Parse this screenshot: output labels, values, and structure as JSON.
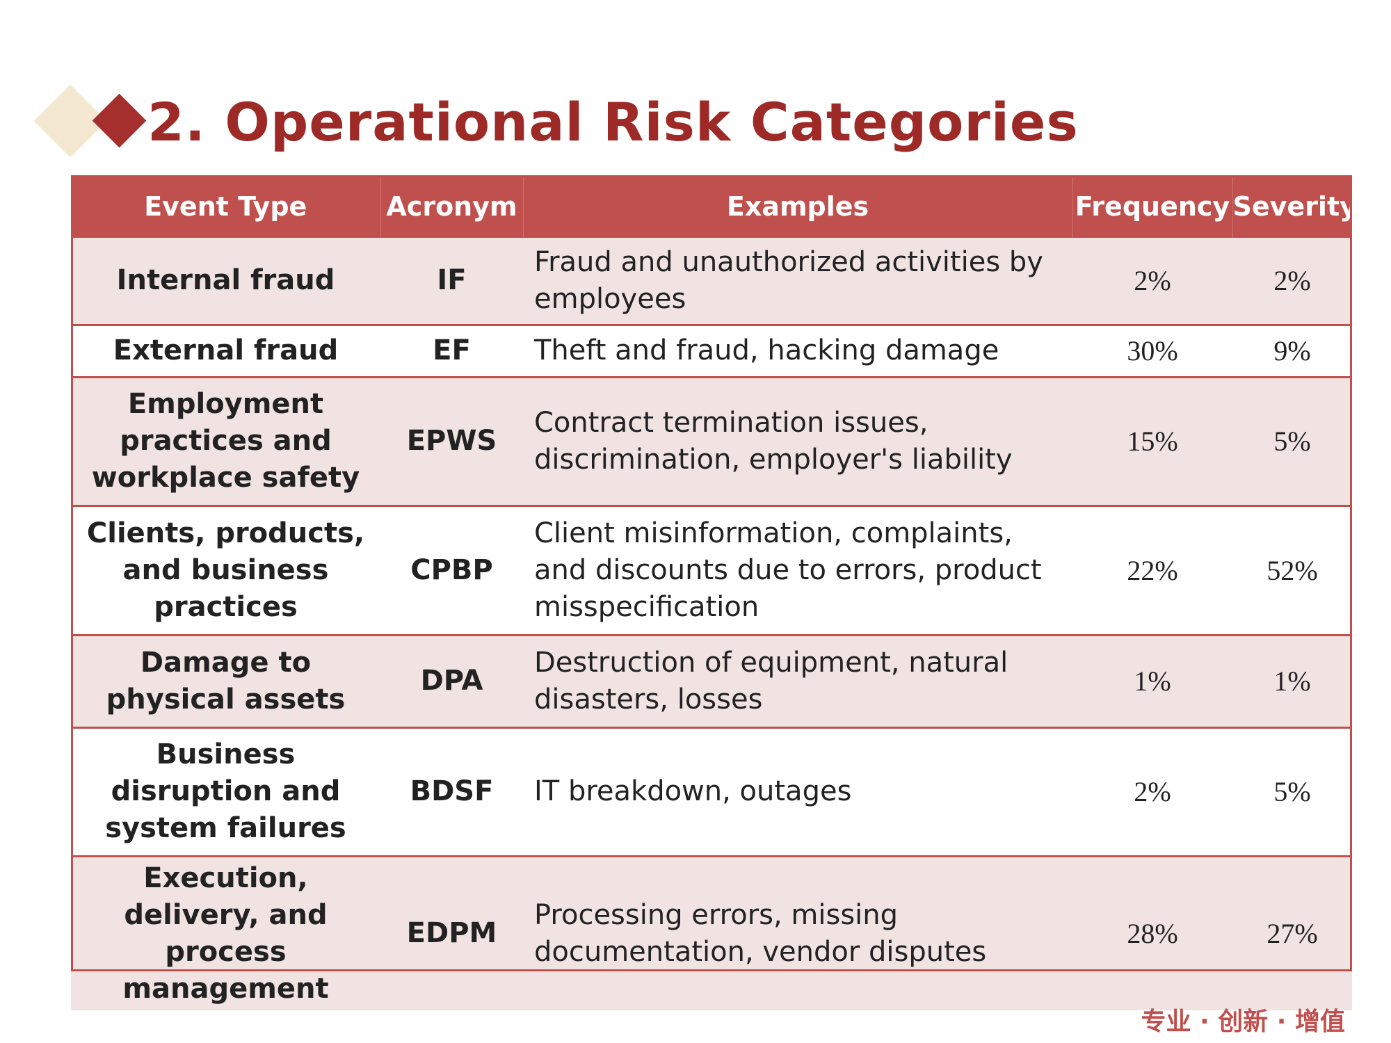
{
  "title": "2. Operational Risk Categories",
  "colors": {
    "accent": "#a52f2c",
    "header_bg": "#c0504d",
    "row_shade": "#f2e3e3",
    "deco_light": "#f4e7d0"
  },
  "table": {
    "headers": [
      "Event Type",
      "Acronym",
      "Examples",
      "Frequency",
      "Severity"
    ],
    "rows": [
      {
        "event": "Internal fraud",
        "acronym": "IF",
        "examples": "Fraud and unauthorized activities by employees",
        "frequency": "2%",
        "severity": "2%"
      },
      {
        "event": "External fraud",
        "acronym": "EF",
        "examples": "Theft and fraud, hacking damage",
        "frequency": "30%",
        "severity": "9%"
      },
      {
        "event": "Employment practices and workplace safety",
        "acronym": "EPWS",
        "examples": "Contract termination issues, discrimination, employer's liability",
        "frequency": "15%",
        "severity": "5%"
      },
      {
        "event": "Clients, products, and business practices",
        "acronym": "CPBP",
        "examples": "Client misinformation, complaints, and discounts due to errors, product misspecification",
        "frequency": "22%",
        "severity": "52%"
      },
      {
        "event": "Damage to physical assets",
        "acronym": "DPA",
        "examples": "Destruction of equipment, natural disasters, losses",
        "frequency": "1%",
        "severity": "1%"
      },
      {
        "event": "Business disruption and system failures",
        "acronym": "BDSF",
        "examples": "IT breakdown, outages",
        "frequency": "2%",
        "severity": "5%"
      },
      {
        "event": "Execution, delivery, and process management",
        "acronym": "EDPM",
        "examples": "Processing errors, missing documentation, vendor disputes",
        "frequency": "28%",
        "severity": "27%"
      }
    ]
  },
  "footer": {
    "slogan": "专业 · 创新 · 增值"
  }
}
